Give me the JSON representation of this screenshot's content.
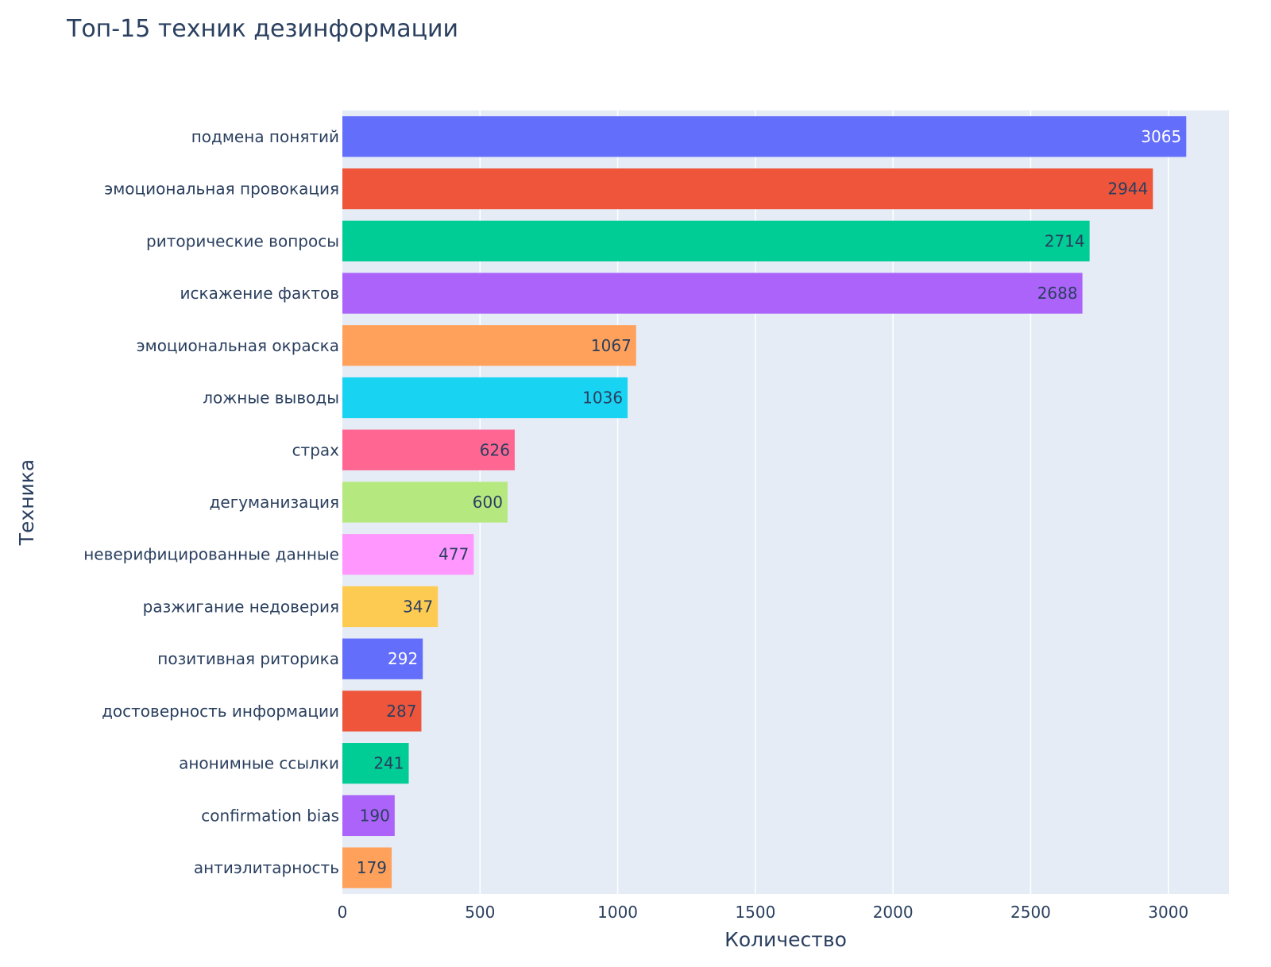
{
  "chart_data": {
    "type": "bar",
    "orientation": "horizontal",
    "title": "Топ-15 техник дезинформации",
    "xlabel": "Количество",
    "ylabel": "Техника",
    "xlim": [
      0,
      3220
    ],
    "xticks": [
      "0",
      "500",
      "1000",
      "1500",
      "2000",
      "2500",
      "3000"
    ],
    "xtick_values": [
      0,
      500,
      1000,
      1500,
      2000,
      2500,
      3000
    ],
    "grid": true,
    "categories": [
      "подмена понятий",
      "эмоциональная провокация",
      "риторические вопросы",
      "искажение фактов",
      "эмоциональная окраска",
      "ложные выводы",
      "страх",
      "дегуманизация",
      "неверифицированные данные",
      "разжигание недоверия",
      "позитивная риторика",
      "достоверность информации",
      "анонимные ссылки",
      "confirmation bias",
      "антиэлитарность"
    ],
    "values": [
      3065,
      2944,
      2714,
      2688,
      1067,
      1036,
      626,
      600,
      477,
      347,
      292,
      287,
      241,
      190,
      179
    ],
    "value_labels": [
      "3065",
      "2944",
      "2714",
      "2688",
      "1067",
      "1036",
      "626",
      "600",
      "477",
      "347",
      "292",
      "287",
      "241",
      "190",
      "179"
    ],
    "colors": [
      "#636efa",
      "#ef553b",
      "#00cc96",
      "#ab63fa",
      "#ffa15a",
      "#19d3f3",
      "#ff6692",
      "#b6e880",
      "#ff97ff",
      "#fecb52",
      "#636efa",
      "#ef553b",
      "#00cc96",
      "#ab63fa",
      "#ffa15a"
    ],
    "label_colors": [
      "#ffffff",
      "#2a3f5f",
      "#2a3f5f",
      "#2a3f5f",
      "#2a3f5f",
      "#2a3f5f",
      "#2a3f5f",
      "#2a3f5f",
      "#2a3f5f",
      "#2a3f5f",
      "#ffffff",
      "#2a3f5f",
      "#2a3f5f",
      "#2a3f5f",
      "#2a3f5f"
    ],
    "plot_background": "#e5ecf6",
    "grid_color": "#ffffff"
  }
}
